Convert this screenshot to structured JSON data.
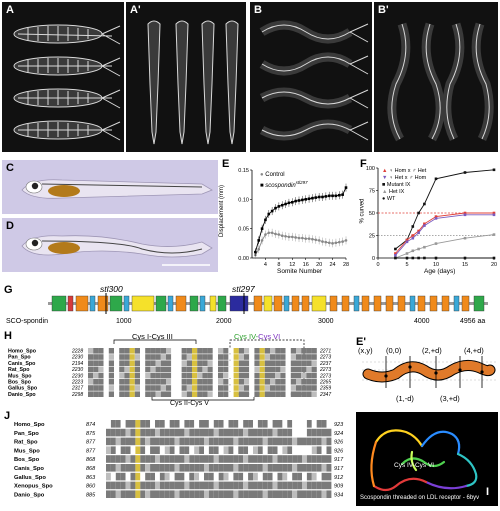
{
  "panels": {
    "A": "A",
    "A_prime": "A'",
    "B": "B",
    "B_prime": "B'",
    "C": "C",
    "D": "D",
    "E": "E",
    "F": "F",
    "G": "G",
    "H": "H",
    "E_prime": "E'",
    "J": "J",
    "I": "I"
  },
  "chart_E": {
    "chart_data": {
      "type": "line",
      "ylabel": "Displacement (mm)",
      "xlabel": "Somite Number",
      "x_ticks": [
        "4",
        "8",
        "12",
        "16",
        "20",
        "24",
        "28"
      ],
      "y_ticks": [
        "0.00",
        "0.05",
        "0.10",
        "0.15"
      ],
      "ylim": [
        0,
        0.15
      ],
      "xlim": [
        0,
        28
      ],
      "legend_control": "Control",
      "legend_mutant": "scospondin",
      "legend_mutant_sup": "stl297",
      "series": [
        {
          "name": "Control",
          "x": [
            1,
            2,
            3,
            4,
            5,
            6,
            7,
            8,
            9,
            10,
            11,
            12,
            13,
            14,
            15,
            16,
            17,
            18,
            19,
            20,
            21,
            22,
            23,
            24,
            25,
            26,
            27,
            28
          ],
          "values": [
            0.005,
            0.015,
            0.03,
            0.04,
            0.043,
            0.043,
            0.041,
            0.04,
            0.038,
            0.037,
            0.036,
            0.036,
            0.035,
            0.034,
            0.034,
            0.033,
            0.033,
            0.032,
            0.031,
            0.03,
            0.028,
            0.027,
            0.026,
            0.025,
            0.026,
            0.027,
            0.028,
            0.03
          ]
        },
        {
          "name": "scospondin",
          "x": [
            1,
            2,
            3,
            4,
            5,
            6,
            7,
            8,
            9,
            10,
            11,
            12,
            13,
            14,
            15,
            16,
            17,
            18,
            19,
            20,
            21,
            22,
            23,
            24,
            25,
            26,
            27,
            28
          ],
          "values": [
            0.01,
            0.03,
            0.05,
            0.065,
            0.075,
            0.08,
            0.085,
            0.088,
            0.09,
            0.092,
            0.094,
            0.095,
            0.097,
            0.098,
            0.099,
            0.1,
            0.101,
            0.102,
            0.103,
            0.104,
            0.104,
            0.105,
            0.106,
            0.106,
            0.106,
            0.107,
            0.108,
            0.12
          ]
        }
      ]
    }
  },
  "chart_F": {
    "chart_data": {
      "type": "line",
      "ylabel": "% curved",
      "xlabel": "Age (days)",
      "x_ticks": [
        "0",
        "5",
        "10",
        "15",
        "20"
      ],
      "y_ticks": [
        "0",
        "25",
        "50",
        "75",
        "100"
      ],
      "xlim": [
        0,
        20
      ],
      "ylim": [
        0,
        100
      ],
      "legend": [
        {
          "label": "♀ Hom x ♂ Het",
          "color": "#e0403a",
          "marker": "triangle"
        },
        {
          "label": "♀ Het x ♂ Hom",
          "color": "#7a5bbf",
          "marker": "triangle-down"
        },
        {
          "label": "Mutant IX",
          "color": "#111111",
          "marker": "square"
        },
        {
          "label": "Het IX",
          "color": "#999999",
          "marker": "triangle"
        },
        {
          "label": "WT",
          "color": "#111111",
          "marker": "circle"
        }
      ],
      "series": [
        {
          "name": "Mutant IX",
          "x": [
            3,
            5,
            6,
            7,
            8,
            10,
            15,
            20
          ],
          "values": [
            10,
            20,
            35,
            50,
            60,
            88,
            95,
            98
          ]
        },
        {
          "name": "♀ Hom x ♂ Het",
          "x": [
            3,
            5,
            6,
            7,
            8,
            10,
            15,
            20
          ],
          "values": [
            5,
            20,
            25,
            30,
            38,
            46,
            50,
            50
          ]
        },
        {
          "name": "♀ Het x ♂ Hom",
          "x": [
            3,
            5,
            6,
            7,
            8,
            10,
            15,
            20
          ],
          "values": [
            3,
            18,
            22,
            28,
            36,
            44,
            48,
            48
          ]
        },
        {
          "name": "Het IX",
          "x": [
            3,
            5,
            6,
            7,
            8,
            10,
            15,
            20
          ],
          "values": [
            0,
            5,
            8,
            10,
            12,
            16,
            22,
            26
          ]
        },
        {
          "name": "WT",
          "x": [
            3,
            5,
            6,
            7,
            8,
            10,
            15,
            20
          ],
          "values": [
            0,
            0,
            0,
            0,
            0,
            0,
            0,
            0
          ]
        }
      ],
      "ref_lines": [
        50,
        25
      ]
    }
  },
  "domain_G": {
    "label_left": "SCO-spondin",
    "ticks": [
      "1000",
      "2000",
      "3000",
      "4000",
      "4956 aa"
    ],
    "alleles": [
      "stl300",
      "stl297"
    ]
  },
  "align_H": {
    "header_1": "Cys I-Cys III",
    "header_2": "Cys IV-",
    "header_3": "Cys VI",
    "footer": "Cys II-Cys V",
    "rows": [
      {
        "name": "Homo_Spo",
        "start": "2228",
        "end": "2271"
      },
      {
        "name": "Pan_Spo",
        "start": "2230",
        "end": "2273"
      },
      {
        "name": "Canis_Spo",
        "start": "2194",
        "end": "2237"
      },
      {
        "name": "Rat_Spo",
        "start": "2230",
        "end": "2273"
      },
      {
        "name": "Mus_Spo",
        "start": "2230",
        "end": "2273"
      },
      {
        "name": "Bos_Spo",
        "start": "2223",
        "end": "2265"
      },
      {
        "name": "Gallus_Spo",
        "start": "2317",
        "end": "2359"
      },
      {
        "name": "Danio_Spo",
        "start": "2298",
        "end": "2347"
      }
    ]
  },
  "model_E_prime": {
    "points": [
      "(x,y)",
      "(0,0)",
      "(2,+d)",
      "(4,+d)",
      "(1,-d)",
      "(3,+d)"
    ]
  },
  "align_J": {
    "rows": [
      {
        "name": "Homo_Spo",
        "start": "874",
        "end": "923"
      },
      {
        "name": "Pan_Spo",
        "start": "875",
        "end": "924"
      },
      {
        "name": "Rat_Spo",
        "start": "877",
        "end": "926"
      },
      {
        "name": "Mus_Spo",
        "start": "877",
        "end": "926"
      },
      {
        "name": "Bos_Spo",
        "start": "868",
        "end": "917"
      },
      {
        "name": "Canis_Spo",
        "start": "868",
        "end": "917"
      },
      {
        "name": "Gallus_Spo",
        "start": "863",
        "end": "912"
      },
      {
        "name": "Xenopus_Spo",
        "start": "860",
        "end": "909"
      },
      {
        "name": "Danio_Spo",
        "start": "885",
        "end": "934"
      }
    ]
  },
  "structure_I": {
    "label": "Cys IV-Cys VI",
    "caption": "Scospondin threaded on LDL receptor - 6byv"
  },
  "colors": {
    "xray_bg": "#111111",
    "larva_bg": "#cfc9e6",
    "worm": "#e07a2a",
    "cys_highlight": "#d8c040",
    "cys4": "#2ca02c",
    "cys6": "#7b2fbf"
  }
}
